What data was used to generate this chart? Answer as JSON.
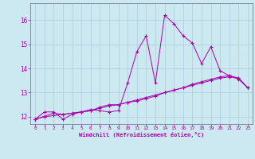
{
  "background_color": "#cce8f0",
  "grid_color": "#aaccdd",
  "line_color": "#aa00aa",
  "xlabel": "Windchill (Refroidissement éolien,°C)",
  "xlim": [
    -0.5,
    23.5
  ],
  "ylim": [
    11.7,
    16.7
  ],
  "yticks": [
    12,
    13,
    14,
    15,
    16
  ],
  "xticks": [
    0,
    1,
    2,
    3,
    4,
    5,
    6,
    7,
    8,
    9,
    10,
    11,
    12,
    13,
    14,
    15,
    16,
    17,
    18,
    19,
    20,
    21,
    22,
    23
  ],
  "line1_x": [
    0,
    1,
    2,
    3,
    4,
    5,
    6,
    7,
    8,
    9,
    10,
    11,
    12,
    13,
    14,
    15,
    16,
    17,
    18,
    19,
    20,
    21,
    22,
    23
  ],
  "line1_y": [
    11.9,
    12.2,
    12.2,
    11.9,
    12.1,
    12.2,
    12.3,
    12.25,
    12.2,
    12.25,
    13.4,
    14.7,
    15.35,
    13.4,
    16.2,
    15.85,
    15.35,
    15.05,
    14.2,
    14.9,
    13.9,
    13.7,
    13.55,
    13.2
  ],
  "line2_x": [
    0,
    2,
    3,
    5,
    6,
    7,
    8,
    9,
    10,
    11,
    12,
    13,
    14,
    15,
    16,
    17,
    18,
    19,
    20,
    21,
    22,
    23
  ],
  "line2_y": [
    11.9,
    12.15,
    12.1,
    12.2,
    12.25,
    12.4,
    12.5,
    12.5,
    12.6,
    12.65,
    12.75,
    12.85,
    13.0,
    13.1,
    13.2,
    13.35,
    13.45,
    13.55,
    13.65,
    13.7,
    13.6,
    13.2
  ],
  "line3_x": [
    0,
    1,
    2,
    3,
    4,
    5,
    6,
    7,
    8,
    9,
    10,
    11,
    12,
    13,
    14,
    15,
    16,
    17,
    18,
    19,
    20,
    21,
    22,
    23
  ],
  "line3_y": [
    11.9,
    12.0,
    12.05,
    12.1,
    12.15,
    12.2,
    12.25,
    12.35,
    12.45,
    12.5,
    12.6,
    12.7,
    12.8,
    12.9,
    13.0,
    13.1,
    13.2,
    13.3,
    13.4,
    13.5,
    13.6,
    13.65,
    13.6,
    13.2
  ]
}
